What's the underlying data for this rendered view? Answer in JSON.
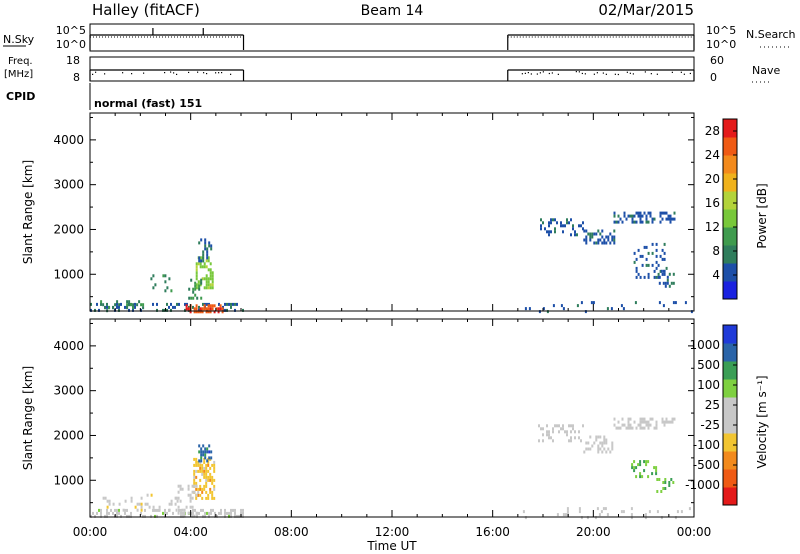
{
  "header": {
    "station": "Halley (fitACF)",
    "beam": "Beam 14",
    "date": "02/Mar/2015"
  },
  "panels": {
    "nsky_label": "N.Sky",
    "nsky_ticks": [
      "10^5",
      "10^0"
    ],
    "nsearch_label": "N.Search",
    "nsearch_ticks": [
      "10^5",
      "10^0"
    ],
    "freq_label_1": "Freq.",
    "freq_label_2": "[MHz]",
    "freq_ticks": [
      "18",
      "8"
    ],
    "nave_label": "Nave",
    "nave_ticks": [
      "60",
      "0"
    ],
    "cpid_label": "CPID",
    "cpid_value": "normal (fast) 151",
    "data_segments_hours": [
      [
        0.0,
        6.1
      ],
      [
        16.6,
        24.0
      ]
    ],
    "nsky_spikes_hours": [
      2.5,
      4.5
    ]
  },
  "colors": {
    "power": [
      "#1a22e0",
      "#1d4fa8",
      "#2f7d5c",
      "#3f9b4e",
      "#78c83a",
      "#b3d33a",
      "#f0b21c",
      "#f38a1c",
      "#ef5a14",
      "#e41a1a"
    ],
    "velocity": [
      "#e41a1a",
      "#ef5a14",
      "#f38a1c",
      "#f2c531",
      "#c8c8c8",
      "#c8c8c8",
      "#7ed040",
      "#3a9e55",
      "#2a64a8",
      "#1f3ad8"
    ]
  },
  "chart_data": [
    {
      "type": "heatmap",
      "name": "power",
      "xlabel": "Time UT",
      "ylabel": "Slant Range [km]",
      "xlim": [
        0,
        24
      ],
      "ylim": [
        180,
        4600
      ],
      "x_ticks": [
        "00:00",
        "04:00",
        "08:00",
        "12:00",
        "16:00",
        "20:00",
        "00:00"
      ],
      "y_ticks": [
        1000,
        2000,
        3000,
        4000
      ],
      "colorbar_label": "Power [dB]",
      "colorbar_ticks": [
        "4",
        "8",
        "12",
        "16",
        "20",
        "24",
        "28"
      ],
      "colorbar_range": [
        0,
        30
      ],
      "regions": [
        {
          "t": [
            0.0,
            6.1
          ],
          "r": [
            180,
            360
          ],
          "value": 6,
          "density": 0.35
        },
        {
          "t": [
            3.8,
            5.3
          ],
          "r": [
            180,
            330
          ],
          "value": 26,
          "density": 0.6
        },
        {
          "t": [
            0.4,
            2.2
          ],
          "r": [
            200,
            420
          ],
          "value": 8,
          "density": 0.25
        },
        {
          "t": [
            4.2,
            4.9
          ],
          "r": [
            700,
            1400
          ],
          "value": 14,
          "density": 0.55
        },
        {
          "t": [
            4.3,
            4.8
          ],
          "r": [
            1300,
            1800
          ],
          "value": 6,
          "density": 0.5
        },
        {
          "t": [
            3.9,
            4.4
          ],
          "r": [
            450,
            900
          ],
          "value": 9,
          "density": 0.3
        },
        {
          "t": [
            2.4,
            3.2
          ],
          "r": [
            600,
            1000
          ],
          "value": 8,
          "density": 0.15
        },
        {
          "t": [
            17.8,
            19.6
          ],
          "r": [
            1850,
            2250
          ],
          "value": 5,
          "density": 0.35
        },
        {
          "t": [
            19.6,
            20.8
          ],
          "r": [
            1600,
            2000
          ],
          "value": 5,
          "density": 0.4
        },
        {
          "t": [
            20.8,
            23.2
          ],
          "r": [
            2150,
            2400
          ],
          "value": 5,
          "density": 0.4
        },
        {
          "t": [
            21.6,
            22.9
          ],
          "r": [
            900,
            1700
          ],
          "value": 5,
          "density": 0.25
        },
        {
          "t": [
            22.6,
            23.2
          ],
          "r": [
            700,
            1100
          ],
          "value": 5,
          "density": 0.3
        },
        {
          "t": [
            17.2,
            24.0
          ],
          "r": [
            180,
            400
          ],
          "value": 5,
          "density": 0.08
        }
      ]
    },
    {
      "type": "heatmap",
      "name": "velocity",
      "xlabel": "Time UT",
      "ylabel": "Slant Range [km]",
      "xlim": [
        0,
        24
      ],
      "ylim": [
        180,
        4600
      ],
      "x_ticks": [
        "00:00",
        "04:00",
        "08:00",
        "12:00",
        "16:00",
        "20:00",
        "00:00"
      ],
      "y_ticks": [
        1000,
        2000,
        3000,
        4000
      ],
      "colorbar_label": "Velocity [m s⁻¹]",
      "colorbar_ticks": [
        "1000",
        "500",
        "100",
        "25",
        "-25",
        "-100",
        "-500",
        "-1000"
      ],
      "colorbar_range": [
        -1000,
        1000
      ],
      "regions": [
        {
          "t": [
            0.0,
            6.1
          ],
          "r": [
            180,
            360
          ],
          "value": 90,
          "density": 0.45
        },
        {
          "t": [
            0.5,
            3.5
          ],
          "r": [
            300,
            700
          ],
          "value": -100,
          "density": 0.15
        },
        {
          "t": [
            4.1,
            4.9
          ],
          "r": [
            600,
            1500
          ],
          "value": -300,
          "density": 0.55
        },
        {
          "t": [
            4.3,
            4.8
          ],
          "r": [
            1400,
            1800
          ],
          "value": 700,
          "density": 0.45
        },
        {
          "t": [
            3.4,
            4.2
          ],
          "r": [
            200,
            900
          ],
          "value": -80,
          "density": 0.25
        },
        {
          "t": [
            17.8,
            19.6
          ],
          "r": [
            1850,
            2250
          ],
          "value": 0,
          "density": 0.35
        },
        {
          "t": [
            19.6,
            20.8
          ],
          "r": [
            1600,
            2000
          ],
          "value": 0,
          "density": 0.4
        },
        {
          "t": [
            20.8,
            23.2
          ],
          "r": [
            2150,
            2400
          ],
          "value": 0,
          "density": 0.4
        },
        {
          "t": [
            21.5,
            22.5
          ],
          "r": [
            1100,
            1450
          ],
          "value": 400,
          "density": 0.3
        },
        {
          "t": [
            22.5,
            23.2
          ],
          "r": [
            750,
            1050
          ],
          "value": 400,
          "density": 0.3
        },
        {
          "t": [
            17.2,
            24.0
          ],
          "r": [
            180,
            400
          ],
          "value": -60,
          "density": 0.08
        }
      ]
    }
  ]
}
